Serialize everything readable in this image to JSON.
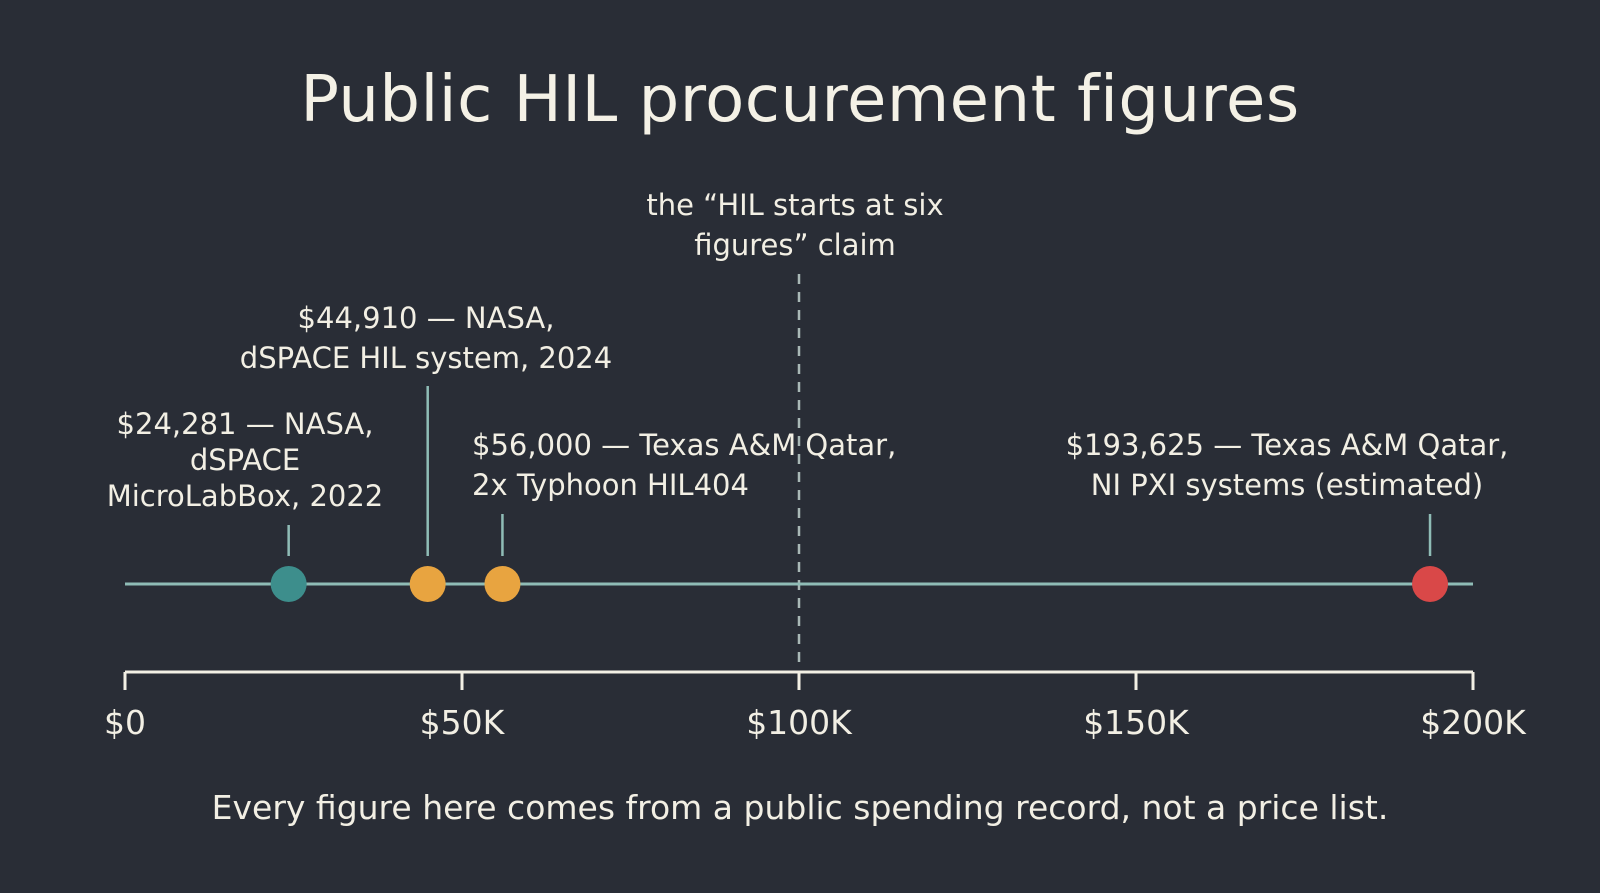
{
  "title": "Public HIL procurement figures",
  "footnote": "Every figure here comes from a public spending record, not a price list.",
  "chart_data": {
    "type": "scatter",
    "title": "Public HIL procurement figures",
    "xlim": [
      0,
      200000
    ],
    "ticks": [
      {
        "value": 0,
        "label": "$0"
      },
      {
        "value": 50000,
        "label": "$50K"
      },
      {
        "value": 100000,
        "label": "$100K"
      },
      {
        "value": 150000,
        "label": "$150K"
      },
      {
        "value": 200000,
        "label": "$200K"
      }
    ],
    "points": [
      {
        "value": 24281,
        "label_lines": [
          "$24,281 — NASA,",
          "dSPACE",
          "MicroLabBox, 2022"
        ],
        "color": "#3d8e8c"
      },
      {
        "value": 44910,
        "label_lines": [
          "$44,910 — NASA,",
          "dSPACE HIL system, 2024"
        ],
        "color": "#e8a440"
      },
      {
        "value": 56000,
        "label_lines": [
          "$56,000 — Texas A&M Qatar,",
          "2x Typhoon HIL404"
        ],
        "color": "#e8a440"
      },
      {
        "value": 193625,
        "label_lines": [
          "$193,625 — Texas A&M Qatar,",
          "NI PXI systems (estimated)"
        ],
        "color": "#d94848"
      }
    ],
    "reference_line": {
      "value": 100000,
      "label_lines": [
        "the “HIL starts at six",
        "figures” claim"
      ]
    },
    "colors": {
      "line": "#8fbcb6",
      "axis": "#f2efe4",
      "background": "#292d36"
    }
  }
}
